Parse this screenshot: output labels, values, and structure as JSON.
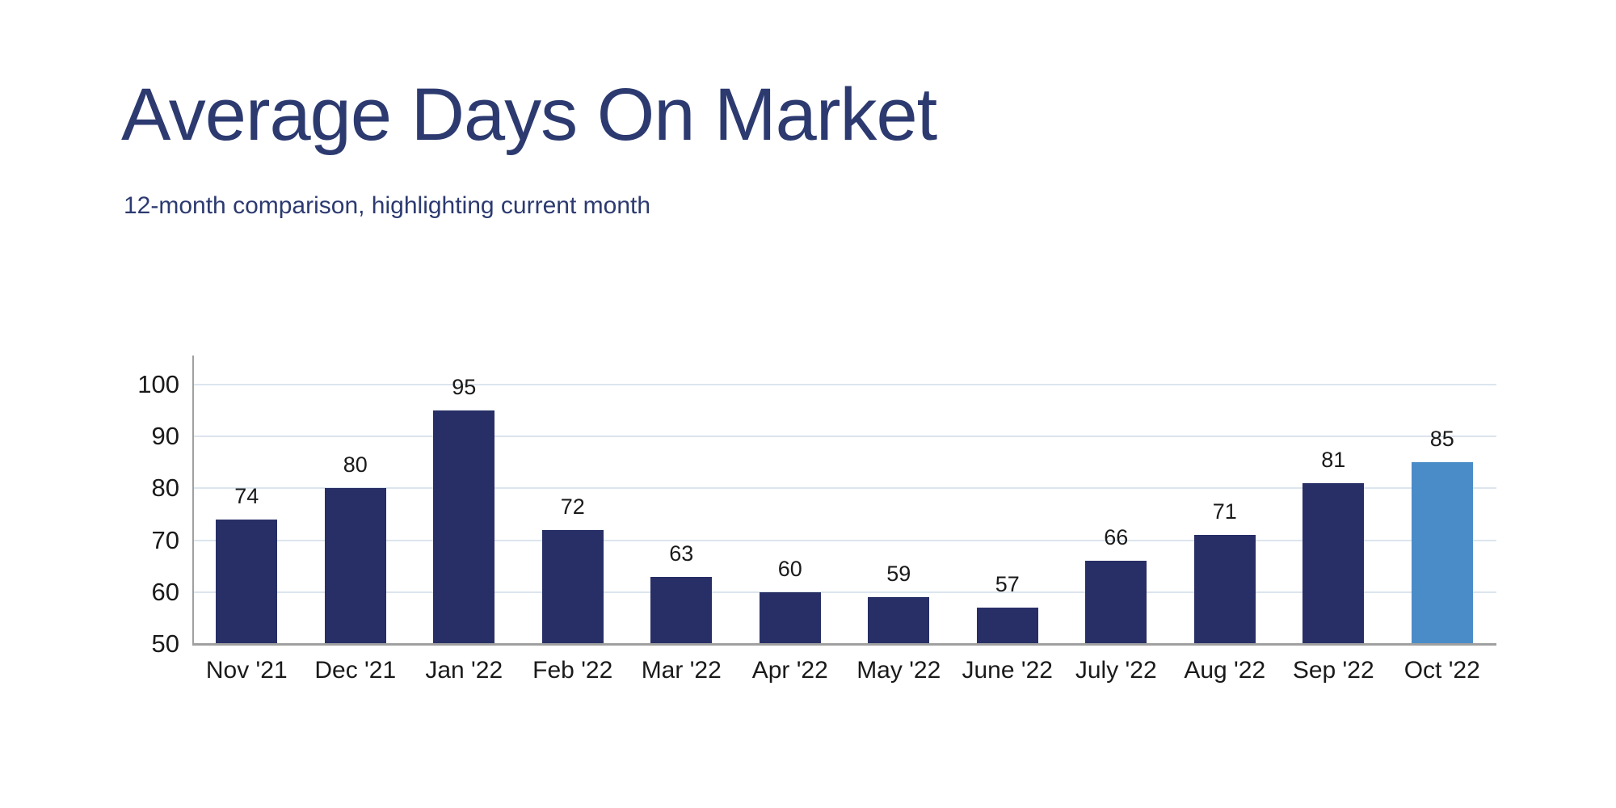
{
  "page": {
    "background": "#ffffff"
  },
  "header": {
    "title": "Average Days On Market",
    "subtitle": "12-month comparison, highlighting current month",
    "title_color": "#2c3a70"
  },
  "chart_data": {
    "type": "bar",
    "title": "Average Days On Market",
    "subtitle": "12-month comparison, highlighting current month",
    "categories": [
      "Nov '21",
      "Dec '21",
      "Jan '22",
      "Feb '22",
      "Mar '22",
      "Apr '22",
      "May '22",
      "June '22",
      "July '22",
      "Aug '22",
      "Sep '22",
      "Oct '22"
    ],
    "values": [
      74,
      80,
      95,
      72,
      63,
      60,
      59,
      57,
      66,
      71,
      81,
      85
    ],
    "highlight_index": 11,
    "highlight_meaning": "current month",
    "xlabel": "",
    "ylabel": "",
    "ylim": [
      50,
      100
    ],
    "yticks": [
      50,
      60,
      70,
      80,
      90,
      100
    ],
    "grid": true,
    "legend": "none",
    "colors": {
      "bar": "#272f66",
      "highlight_bar": "#4a8cc8",
      "gridline": "#dce5ee",
      "axis": "#a0a0a0",
      "tick_label": "#1a1a1a",
      "value_label": "#1a1a1a"
    }
  }
}
